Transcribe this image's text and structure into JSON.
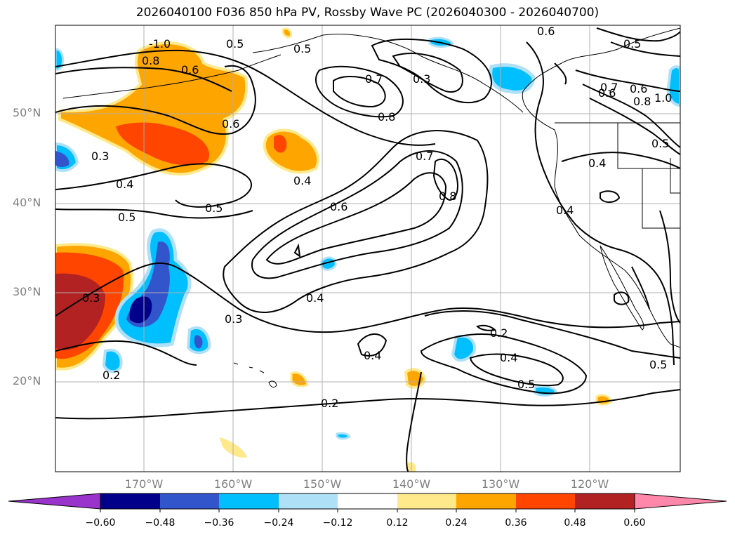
{
  "title": "2026040100 F036 850 hPa PV, Rossby Wave PC (2026040300 - 2026040700)",
  "map": {
    "region": "North Pacific and western North America",
    "lat_labels": [
      "50°N",
      "40°N",
      "30°N",
      "20°N"
    ],
    "lon_labels": [
      "170°W",
      "160°W",
      "150°W",
      "140°W",
      "130°W",
      "120°W"
    ],
    "contour_labels": [
      "-1.0",
      "0.8",
      "0.6",
      "0.5",
      "0.5",
      "0.7",
      "0.3",
      "0.8",
      "0.6",
      "0.3",
      "0.4",
      "0.4",
      "0.5",
      "0.6",
      "0.7",
      "0.8",
      "0.5",
      "0.3",
      "0.4",
      "0.4",
      "0.3",
      "0.2",
      "0.2",
      "0.4",
      "0.2",
      "0.4",
      "0.5",
      "0.6",
      "0.4",
      "0.7",
      "0.6",
      "0.8",
      "1.0",
      "0.5",
      "0.5",
      "0.6",
      "0.5"
    ],
    "colors": {
      "contour": "#000000",
      "grid": "#b0b0b0",
      "coast": "#000000"
    }
  },
  "colorbar": {
    "ticks": [
      "−0.60",
      "−0.48",
      "−0.36",
      "−0.24",
      "−0.12",
      "0.12",
      "0.24",
      "0.36",
      "0.48",
      "0.60"
    ],
    "colors": [
      "#9933cc",
      "#00008b",
      "#3355cc",
      "#00bfff",
      "#aee0f8",
      "#ffffff",
      "#ffe98a",
      "#ffa500",
      "#ff4500",
      "#b22222",
      "#ff88aa"
    ]
  }
}
